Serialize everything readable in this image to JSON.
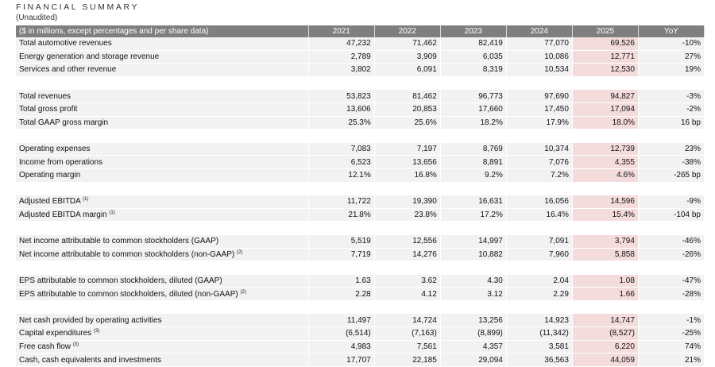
{
  "title": "FINANCIAL SUMMARY",
  "subtitle": "(Unaudited)",
  "colors": {
    "header_bg": "#7f7f7f",
    "row_bg": "#f2f2f2",
    "highlight_2025": "#f5dcdc"
  },
  "columns": [
    "($ in millions, except percentages and per share data)",
    "2021",
    "2022",
    "2023",
    "2024",
    "2025",
    "YoY"
  ],
  "groups": [
    [
      {
        "label": "Total automotive revenues",
        "values": [
          "47,232",
          "71,462",
          "82,419",
          "77,070",
          "69,526",
          "-10%"
        ]
      },
      {
        "label": "Energy generation and storage revenue",
        "values": [
          "2,789",
          "3,909",
          "6,035",
          "10,086",
          "12,771",
          "27%"
        ]
      },
      {
        "label": "Services and other revenue",
        "values": [
          "3,802",
          "6,091",
          "8,319",
          "10,534",
          "12,530",
          "19%"
        ]
      }
    ],
    [
      {
        "label": "Total revenues",
        "values": [
          "53,823",
          "81,462",
          "96,773",
          "97,690",
          "94,827",
          "-3%"
        ]
      },
      {
        "label": "Total gross profit",
        "values": [
          "13,606",
          "20,853",
          "17,660",
          "17,450",
          "17,094",
          "-2%"
        ]
      },
      {
        "label": "Total GAAP gross margin",
        "values": [
          "25.3%",
          "25.6%",
          "18.2%",
          "17.9%",
          "18.0%",
          "16 bp"
        ]
      }
    ],
    [
      {
        "label": "Operating expenses",
        "values": [
          "7,083",
          "7,197",
          "8,769",
          "10,374",
          "12,739",
          "23%"
        ]
      },
      {
        "label": "Income from operations",
        "values": [
          "6,523",
          "13,656",
          "8,891",
          "7,076",
          "4,355",
          "-38%"
        ]
      },
      {
        "label": "Operating margin",
        "values": [
          "12.1%",
          "16.8%",
          "9.2%",
          "7.2%",
          "4.6%",
          "-265 bp"
        ]
      }
    ],
    [
      {
        "label": "Adjusted EBITDA",
        "note": "(1)",
        "values": [
          "11,722",
          "19,390",
          "16,631",
          "16,056",
          "14,596",
          "-9%"
        ]
      },
      {
        "label": "Adjusted EBITDA margin",
        "note": "(1)",
        "values": [
          "21.8%",
          "23.8%",
          "17.2%",
          "16.4%",
          "15.4%",
          "-104 bp"
        ]
      }
    ],
    [
      {
        "label": "Net income attributable to common stockholders (GAAP)",
        "values": [
          "5,519",
          "12,556",
          "14,997",
          "7,091",
          "3,794",
          "-46%"
        ]
      },
      {
        "label": "Net income attributable to common stockholders (non-GAAP)",
        "note": "(2)",
        "values": [
          "7,719",
          "14,276",
          "10,882",
          "7,960",
          "5,858",
          "-26%"
        ]
      }
    ],
    [
      {
        "label": "EPS attributable to common stockholders, diluted (GAAP)",
        "values": [
          "1.63",
          "3.62",
          "4.30",
          "2.04",
          "1.08",
          "-47%"
        ]
      },
      {
        "label": "EPS attributable to common stockholders, diluted (non-GAAP)",
        "note": "(2)",
        "values": [
          "2.28",
          "4.12",
          "3.12",
          "2.29",
          "1.66",
          "-28%"
        ]
      }
    ],
    [
      {
        "label": "Net cash provided by operating activities",
        "values": [
          "11,497",
          "14,724",
          "13,256",
          "14,923",
          "14,747",
          "-1%"
        ]
      },
      {
        "label": "Capital expenditures",
        "note": "(3)",
        "values": [
          "(6,514)",
          "(7,163)",
          "(8,899)",
          "(11,342)",
          "(8,527)",
          "-25%"
        ]
      },
      {
        "label": "Free cash flow",
        "note": "(3)",
        "values": [
          "4,983",
          "7,561",
          "4,357",
          "3,581",
          "6,220",
          "74%"
        ]
      },
      {
        "label": "Cash, cash equivalents and investments",
        "values": [
          "17,707",
          "22,185",
          "29,094",
          "36,563",
          "44,059",
          "21%"
        ]
      }
    ]
  ]
}
